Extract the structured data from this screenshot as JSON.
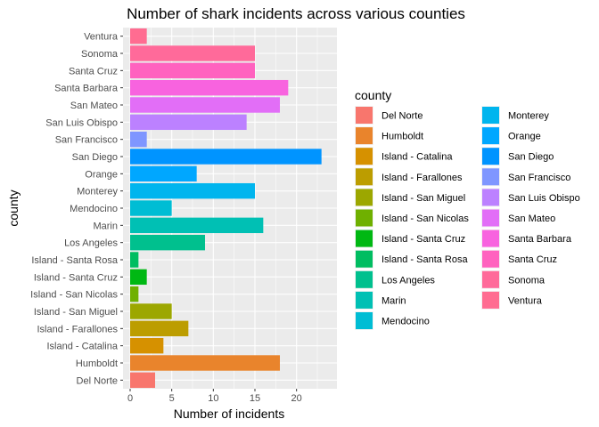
{
  "chart_data": {
    "type": "bar",
    "orientation": "horizontal",
    "title": "Number of shark incidents across various counties",
    "xlabel": "Number of incidents",
    "ylabel": "county",
    "xlim": [
      0,
      24
    ],
    "xticks": [
      0,
      5,
      10,
      15,
      20
    ],
    "grid": true,
    "legend": {
      "title": "county",
      "placement": "right",
      "columns": 2
    },
    "categories": [
      "Del Norte",
      "Humboldt",
      "Island - Catalina",
      "Island - Farallones",
      "Island - San Miguel",
      "Island - San Nicolas",
      "Island - Santa Cruz",
      "Island - Santa Rosa",
      "Los Angeles",
      "Marin",
      "Mendocino",
      "Monterey",
      "Orange",
      "San Diego",
      "San Francisco",
      "San Luis Obispo",
      "San Mateo",
      "Santa Barbara",
      "Santa Cruz",
      "Sonoma",
      "Ventura"
    ],
    "values": [
      3,
      18,
      4,
      7,
      5,
      1,
      2,
      1,
      9,
      16,
      5,
      15,
      8,
      23,
      2,
      14,
      18,
      19,
      15,
      15,
      2
    ],
    "colors": [
      "#F8766D",
      "#E9842C",
      "#D69100",
      "#BC9D00",
      "#9CA700",
      "#6FB000",
      "#00B813",
      "#00BD61",
      "#00C08E",
      "#00C0B4",
      "#00BDD4",
      "#00B5EE",
      "#00A7FF",
      "#0094FF",
      "#7F96FF",
      "#BC81FF",
      "#E26EF7",
      "#F863DF",
      "#FF62BF",
      "#FF6A9A",
      "#FF6C91"
    ]
  }
}
